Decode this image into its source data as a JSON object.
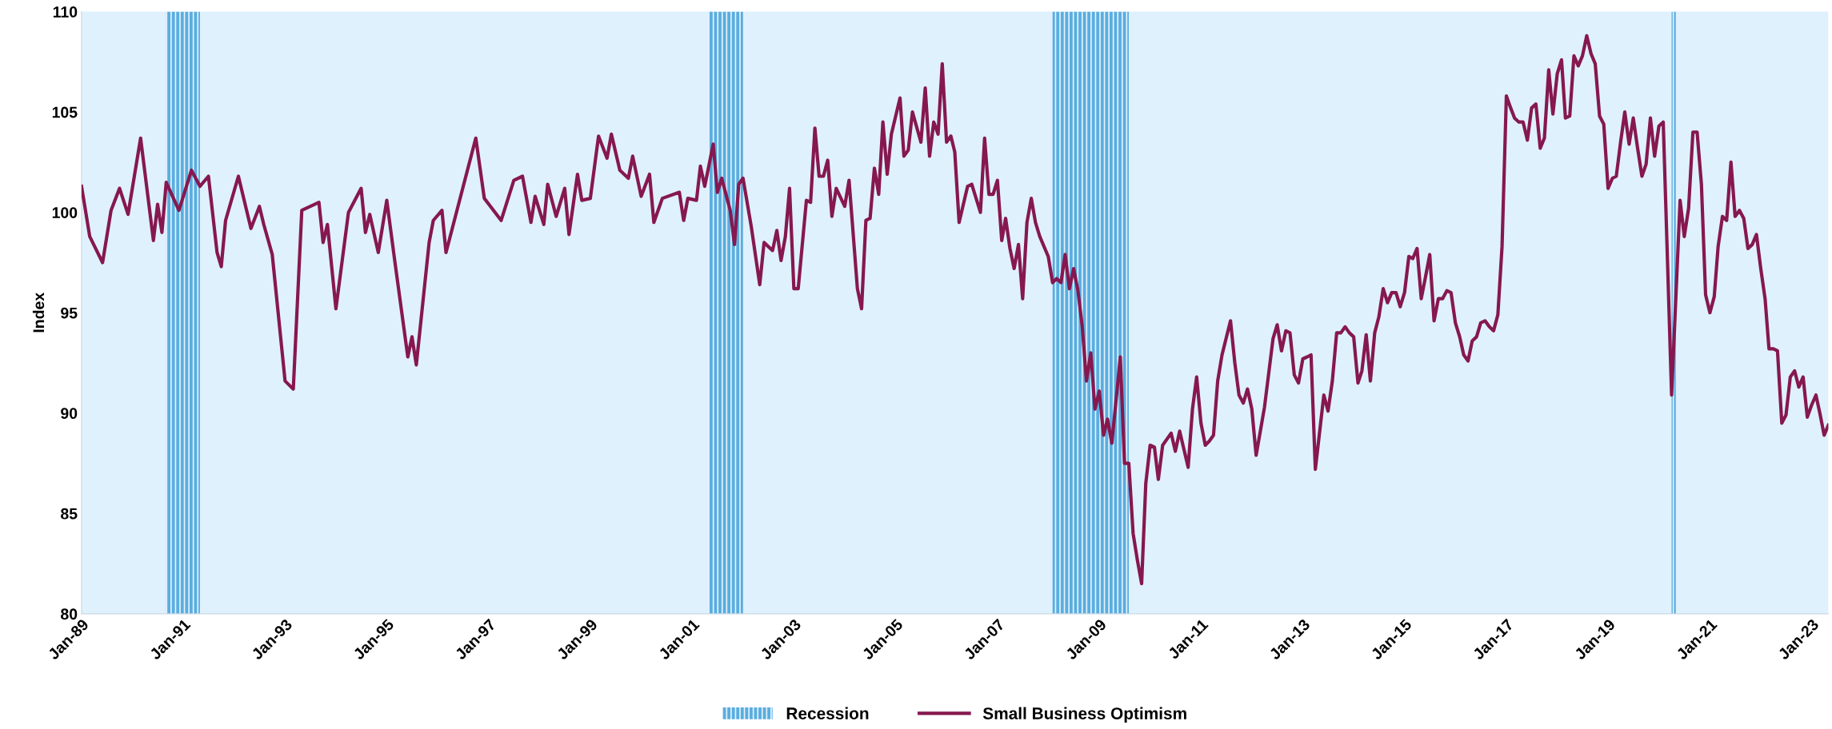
{
  "chart_data": {
    "type": "line",
    "ylabel": "Index",
    "xlim": [
      "1989-01",
      "2023-05"
    ],
    "ylim": [
      80,
      110
    ],
    "yticks": [
      80,
      85,
      90,
      95,
      100,
      105,
      110
    ],
    "xticks": [
      {
        "value": "1989-01",
        "label": "Jan-89"
      },
      {
        "value": "1991-01",
        "label": "Jan-91"
      },
      {
        "value": "1993-01",
        "label": "Jan-93"
      },
      {
        "value": "1995-01",
        "label": "Jan-95"
      },
      {
        "value": "1997-01",
        "label": "Jan-97"
      },
      {
        "value": "1999-01",
        "label": "Jan-99"
      },
      {
        "value": "2001-01",
        "label": "Jan-01"
      },
      {
        "value": "2003-01",
        "label": "Jan-03"
      },
      {
        "value": "2005-01",
        "label": "Jan-05"
      },
      {
        "value": "2007-01",
        "label": "Jan-07"
      },
      {
        "value": "2009-01",
        "label": "Jan-09"
      },
      {
        "value": "2011-01",
        "label": "Jan-11"
      },
      {
        "value": "2013-01",
        "label": "Jan-13"
      },
      {
        "value": "2015-01",
        "label": "Jan-15"
      },
      {
        "value": "2017-01",
        "label": "Jan-17"
      },
      {
        "value": "2019-01",
        "label": "Jan-19"
      },
      {
        "value": "2021-01",
        "label": "Jan-21"
      },
      {
        "value": "2023-01",
        "label": "Jan-23"
      }
    ],
    "bands": [
      {
        "axis": "x",
        "from": "1990-09",
        "to": "1991-05",
        "label": "Recession",
        "color": "#5aade0"
      },
      {
        "axis": "x",
        "from": "2001-05",
        "to": "2002-01",
        "color": "#5aade0"
      },
      {
        "axis": "x",
        "from": "2008-02",
        "to": "2009-08",
        "color": "#5aade0"
      },
      {
        "axis": "x",
        "from": "2020-04",
        "to": "2020-05",
        "color": "#5aade0"
      }
    ],
    "legend": "bottom",
    "series": [
      {
        "name": "Small Business Optimism",
        "color": "#86184f",
        "x": [
          "1989-01",
          "1989-03",
          "1989-06",
          "1989-08",
          "1989-10",
          "1989-12",
          "1990-03",
          "1990-06",
          "1990-07",
          "1990-08",
          "1990-09",
          "1990-12",
          "1991-03",
          "1991-05",
          "1991-07",
          "1991-09",
          "1991-10",
          "1991-11",
          "1992-02",
          "1992-05",
          "1992-07",
          "1992-08",
          "1992-10",
          "1993-01",
          "1993-03",
          "1993-05",
          "1993-09",
          "1993-10",
          "1993-11",
          "1994-01",
          "1994-04",
          "1994-07",
          "1994-08",
          "1994-09",
          "1994-11",
          "1995-01",
          "1995-03",
          "1995-06",
          "1995-07",
          "1995-08",
          "1995-11",
          "1995-12",
          "1996-02",
          "1996-03",
          "1996-10",
          "1996-12",
          "1997-04",
          "1997-07",
          "1997-09",
          "1997-11",
          "1997-12",
          "1998-02",
          "1998-03",
          "1998-05",
          "1998-07",
          "1998-08",
          "1998-10",
          "1998-11",
          "1999-01",
          "1999-03",
          "1999-05",
          "1999-06",
          "1999-08",
          "1999-10",
          "1999-11",
          "2000-01",
          "2000-03",
          "2000-04",
          "2000-06",
          "2000-10",
          "2000-11",
          "2000-12",
          "2001-02",
          "2001-03",
          "2001-04",
          "2001-06",
          "2001-07",
          "2001-08",
          "2001-10",
          "2001-11",
          "2001-12",
          "2002-01",
          "2002-03",
          "2002-05",
          "2002-06",
          "2002-08",
          "2002-09",
          "2002-10",
          "2002-11",
          "2002-12",
          "2003-01",
          "2003-02",
          "2003-04",
          "2003-05",
          "2003-06",
          "2003-07",
          "2003-08",
          "2003-09",
          "2003-10",
          "2003-11",
          "2004-01",
          "2004-02",
          "2004-04",
          "2004-05",
          "2004-06",
          "2004-07",
          "2004-08",
          "2004-09",
          "2004-10",
          "2004-11",
          "2004-12",
          "2005-02",
          "2005-03",
          "2005-04",
          "2005-05",
          "2005-07",
          "2005-08",
          "2005-09",
          "2005-10",
          "2005-11",
          "2005-12",
          "2006-01",
          "2006-02",
          "2006-03",
          "2006-04",
          "2006-06",
          "2006-07",
          "2006-09",
          "2006-10",
          "2006-11",
          "2006-12",
          "2007-01",
          "2007-02",
          "2007-03",
          "2007-04",
          "2007-05",
          "2007-06",
          "2007-07",
          "2007-08",
          "2007-09",
          "2007-10",
          "2007-11",
          "2008-01",
          "2008-02",
          "2008-03",
          "2008-04",
          "2008-05",
          "2008-06",
          "2008-07",
          "2008-08",
          "2008-09",
          "2008-10",
          "2008-11",
          "2008-12",
          "2009-01",
          "2009-02",
          "2009-03",
          "2009-04",
          "2009-05",
          "2009-06",
          "2009-07",
          "2009-08",
          "2009-09",
          "2009-10",
          "2009-11",
          "2009-12",
          "2010-01",
          "2010-02",
          "2010-03",
          "2010-04",
          "2010-06",
          "2010-07",
          "2010-08",
          "2010-10",
          "2010-11",
          "2010-12",
          "2011-01",
          "2011-02",
          "2011-03",
          "2011-04",
          "2011-05",
          "2011-06",
          "2011-08",
          "2011-09",
          "2011-10",
          "2011-11",
          "2011-12",
          "2012-01",
          "2012-02",
          "2012-04",
          "2012-06",
          "2012-07",
          "2012-08",
          "2012-09",
          "2012-10",
          "2012-11",
          "2012-12",
          "2013-01",
          "2013-02",
          "2013-03",
          "2013-04",
          "2013-06",
          "2013-07",
          "2013-08",
          "2013-09",
          "2013-10",
          "2013-11",
          "2013-12",
          "2014-01",
          "2014-02",
          "2014-03",
          "2014-04",
          "2014-05",
          "2014-06",
          "2014-07",
          "2014-08",
          "2014-09",
          "2014-10",
          "2014-11",
          "2014-12",
          "2015-01",
          "2015-02",
          "2015-03",
          "2015-04",
          "2015-05",
          "2015-06",
          "2015-07",
          "2015-08",
          "2015-09",
          "2015-10",
          "2015-11",
          "2015-12",
          "2016-01",
          "2016-02",
          "2016-03",
          "2016-04",
          "2016-05",
          "2016-06",
          "2016-07",
          "2016-08",
          "2016-09",
          "2016-10",
          "2016-11",
          "2016-12",
          "2017-01",
          "2017-02",
          "2017-03",
          "2017-04",
          "2017-05",
          "2017-06",
          "2017-07",
          "2017-08",
          "2017-09",
          "2017-10",
          "2017-11",
          "2017-12",
          "2018-01",
          "2018-02",
          "2018-03",
          "2018-04",
          "2018-05",
          "2018-06",
          "2018-07",
          "2018-08",
          "2018-09",
          "2018-10",
          "2018-11",
          "2018-12",
          "2019-01",
          "2019-02",
          "2019-03",
          "2019-04",
          "2019-05",
          "2019-06",
          "2019-07",
          "2019-08",
          "2019-09",
          "2019-10",
          "2019-11",
          "2019-12",
          "2020-01",
          "2020-02",
          "2020-04",
          "2020-06",
          "2020-07",
          "2020-08",
          "2020-09",
          "2020-10",
          "2020-11",
          "2020-12",
          "2021-01",
          "2021-02",
          "2021-03",
          "2021-04",
          "2021-05",
          "2021-06",
          "2021-07",
          "2021-08",
          "2021-09",
          "2021-10",
          "2021-11",
          "2021-12",
          "2022-01",
          "2022-02",
          "2022-03",
          "2022-04",
          "2022-05",
          "2022-06",
          "2022-07",
          "2022-08",
          "2022-09",
          "2022-10",
          "2022-11",
          "2022-12",
          "2023-01",
          "2023-02",
          "2023-03",
          "2023-04",
          "2023-05"
        ],
        "values": [
          101.3,
          98.8,
          97.5,
          100.1,
          101.2,
          99.9,
          103.7,
          98.6,
          100.4,
          99.0,
          101.5,
          100.1,
          102.1,
          101.3,
          101.8,
          98.0,
          97.3,
          99.6,
          101.8,
          99.2,
          100.3,
          99.4,
          97.9,
          91.6,
          91.2,
          100.1,
          100.5,
          98.5,
          99.4,
          95.2,
          100.0,
          101.2,
          99.0,
          99.9,
          98.0,
          100.6,
          97.5,
          92.8,
          93.8,
          92.4,
          98.5,
          99.6,
          100.1,
          98.0,
          103.7,
          100.7,
          99.6,
          101.6,
          101.8,
          99.5,
          100.8,
          99.4,
          101.4,
          99.8,
          101.2,
          98.9,
          101.9,
          100.6,
          100.7,
          103.8,
          102.7,
          103.9,
          102.1,
          101.7,
          102.8,
          100.8,
          101.9,
          99.5,
          100.7,
          101.0,
          99.6,
          100.7,
          100.6,
          102.3,
          101.3,
          103.4,
          101.0,
          101.7,
          100.1,
          98.4,
          101.4,
          101.7,
          99.3,
          96.4,
          98.5,
          98.1,
          99.1,
          97.6,
          98.8,
          101.2,
          96.2,
          96.2,
          100.6,
          100.5,
          104.2,
          101.8,
          101.8,
          102.6,
          99.8,
          101.2,
          100.3,
          101.6,
          96.2,
          95.2,
          99.6,
          99.7,
          102.2,
          100.9,
          104.5,
          101.9,
          103.9,
          105.7,
          102.8,
          103.1,
          105.0,
          103.5,
          106.2,
          102.8,
          104.5,
          103.9,
          107.4,
          103.5,
          103.8,
          103.0,
          99.5,
          101.3,
          101.4,
          100.0,
          103.7,
          100.9,
          100.9,
          101.6,
          98.6,
          99.7,
          98.2,
          97.2,
          98.4,
          95.7,
          99.5,
          100.7,
          99.5,
          98.8,
          97.8,
          96.5,
          96.7,
          96.5,
          97.9,
          96.2,
          97.2,
          96.1,
          94.3,
          91.6,
          93.0,
          90.2,
          91.1,
          88.9,
          89.7,
          88.5,
          90.6,
          92.8,
          87.5,
          87.5,
          84.0,
          82.7,
          81.5,
          86.5,
          88.4,
          88.3,
          86.7,
          88.4,
          89.0,
          88.1,
          89.1,
          87.3,
          90.2,
          91.8,
          89.5,
          88.4,
          88.6,
          88.9,
          91.6,
          92.9,
          94.6,
          92.5,
          90.9,
          90.5,
          91.2,
          90.2,
          87.9,
          90.3,
          93.7,
          94.4,
          93.1,
          94.1,
          94.0,
          91.9,
          91.5,
          92.7,
          92.8,
          92.9,
          87.2,
          90.9,
          90.1,
          91.6,
          94.0,
          94.0,
          94.3,
          94.0,
          93.8,
          91.5,
          92.1,
          93.9,
          91.6,
          94.0,
          94.8,
          96.2,
          95.5,
          96.0,
          96.0,
          95.3,
          96.0,
          97.8,
          97.7,
          98.2,
          95.7,
          96.8,
          97.9,
          94.6,
          95.7,
          95.7,
          96.1,
          96.0,
          94.5,
          93.8,
          92.9,
          92.6,
          93.6,
          93.8,
          94.5,
          94.6,
          94.3,
          94.1,
          94.9,
          98.3,
          105.8,
          105.2,
          104.7,
          104.5,
          104.5,
          103.6,
          105.2,
          105.4,
          103.2,
          103.7,
          107.1,
          104.9,
          106.9,
          107.6,
          104.7,
          104.8,
          107.8,
          107.3,
          107.8,
          108.8,
          107.9,
          107.4,
          104.8,
          104.4,
          101.2,
          101.7,
          101.8,
          103.5,
          105.0,
          103.4,
          104.7,
          103.2,
          101.8,
          102.4,
          104.7,
          102.8,
          104.3,
          104.5,
          90.9,
          100.6,
          98.8,
          100.2,
          104.0,
          104.0,
          101.4,
          95.9,
          95.0,
          95.8,
          98.3,
          99.8,
          99.6,
          102.5,
          99.8,
          100.1,
          99.7,
          98.2,
          98.4,
          98.9,
          97.2,
          95.7,
          93.2,
          93.2,
          93.1,
          89.5,
          89.9,
          91.8,
          92.1,
          91.3,
          91.8,
          89.8,
          90.4,
          90.9,
          90.0,
          88.9,
          89.4
        ]
      }
    ]
  }
}
